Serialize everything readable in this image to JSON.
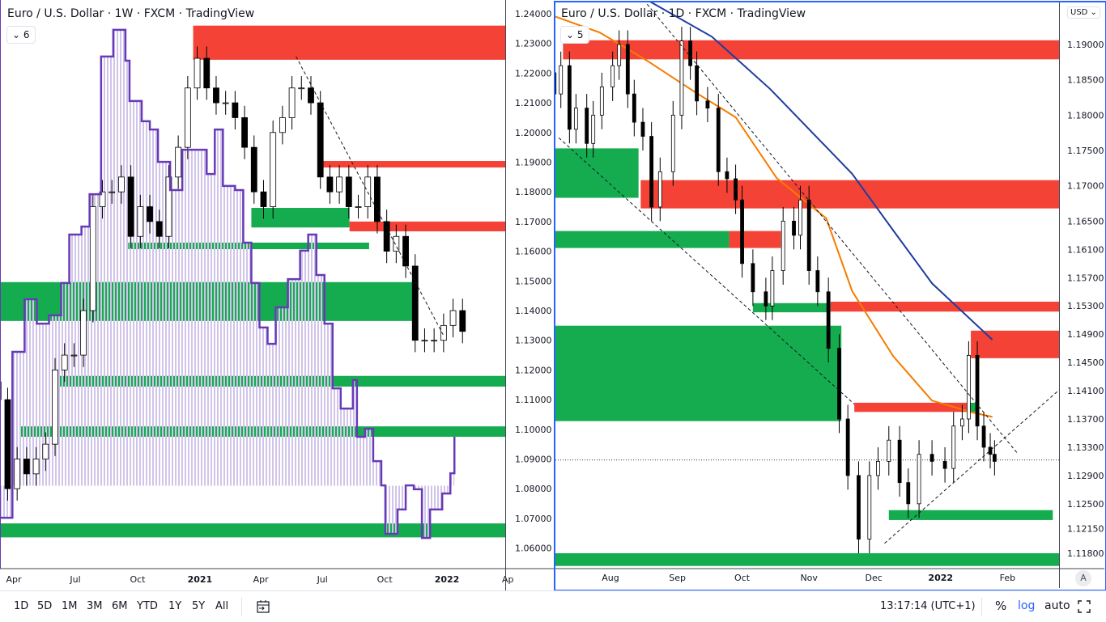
{
  "left_chart": {
    "title": "Euro / U.S. Dollar · 1W · FXCM · TradingView",
    "indicator_count": "6",
    "price_axis": [
      "1.24000",
      "1.23000",
      "1.22000",
      "1.21000",
      "1.20000",
      "1.19000",
      "1.18000",
      "1.17000",
      "1.16000",
      "1.15000",
      "1.14000",
      "1.13000",
      "1.12000",
      "1.11000",
      "1.10000",
      "1.09000",
      "1.08000",
      "1.07000",
      "1.06000"
    ],
    "time_axis": [
      {
        "label": "Apr",
        "date": "2020-04-01"
      },
      {
        "label": "Jul",
        "date": "2020-07-01"
      },
      {
        "label": "Oct",
        "date": "2020-10-01"
      },
      {
        "label": "2021",
        "date": "2021-01-01"
      },
      {
        "label": "Apr",
        "date": "2021-04-01"
      },
      {
        "label": "Jul",
        "date": "2021-07-01"
      },
      {
        "label": "Oct",
        "date": "2021-10-01"
      },
      {
        "label": "2022",
        "date": "2022-01-01"
      },
      {
        "label": "Ap",
        "date": "2022-04-01"
      }
    ]
  },
  "right_chart": {
    "title": "Euro / U.S. Dollar · 1D · FXCM · TradingView",
    "indicator_count": "5",
    "currency": "USD",
    "auto_scale_button": "A",
    "price_axis": [
      "1.19000",
      "1.18500",
      "1.18000",
      "1.17500",
      "1.17000",
      "1.16500",
      "1.16100",
      "1.15700",
      "1.15300",
      "1.14900",
      "1.14500",
      "1.14100",
      "1.13700",
      "1.13300",
      "1.12900",
      "1.12500",
      "1.12150",
      "1.11800"
    ],
    "time_axis": [
      {
        "label": "Aug",
        "date": "2021-08-01"
      },
      {
        "label": "Sep",
        "date": "2021-09-01"
      },
      {
        "label": "Oct",
        "date": "2021-10-01"
      },
      {
        "label": "Nov",
        "date": "2021-11-01"
      },
      {
        "label": "Dec",
        "date": "2021-12-01"
      },
      {
        "label": "2022",
        "date": "2022-01-01"
      },
      {
        "label": "Feb",
        "date": "2022-02-01"
      }
    ]
  },
  "toolbar": {
    "ranges": [
      "1D",
      "5D",
      "1M",
      "3M",
      "6M",
      "YTD",
      "1Y",
      "5Y",
      "All"
    ],
    "time": "13:17:14 (UTC+1)",
    "percent": "%",
    "log": "log",
    "auto": "auto"
  },
  "colors": {
    "supply_zone": "#f44336",
    "demand_zone": "#15ac50",
    "indicator": "#673ab7",
    "indicator_fill": "#d1c4e9",
    "ma_fast": "#f57c00",
    "ma_slow": "#1e3d9e",
    "accent": "#2962ff"
  },
  "chart_data": [
    {
      "type": "candlestick",
      "symbol": "EUR/USD",
      "interval": "1W",
      "scale": "linear",
      "ylim": [
        1.055,
        1.243
      ],
      "closes": [
        [
          "2020-03-09",
          1.11
        ],
        [
          "2020-03-23",
          1.08
        ],
        [
          "2020-04-06",
          1.09
        ],
        [
          "2020-04-20",
          1.085
        ],
        [
          "2020-05-04",
          1.09
        ],
        [
          "2020-05-18",
          1.095
        ],
        [
          "2020-06-01",
          1.12
        ],
        [
          "2020-06-15",
          1.125
        ],
        [
          "2020-06-29",
          1.125
        ],
        [
          "2020-07-13",
          1.14
        ],
        [
          "2020-07-27",
          1.175
        ],
        [
          "2020-08-10",
          1.18
        ],
        [
          "2020-08-24",
          1.18
        ],
        [
          "2020-09-07",
          1.185
        ],
        [
          "2020-09-21",
          1.165
        ],
        [
          "2020-10-05",
          1.175
        ],
        [
          "2020-10-19",
          1.17
        ],
        [
          "2020-11-02",
          1.165
        ],
        [
          "2020-11-16",
          1.185
        ],
        [
          "2020-11-30",
          1.195
        ],
        [
          "2020-12-14",
          1.215
        ],
        [
          "2020-12-28",
          1.225
        ],
        [
          "2021-01-11",
          1.215
        ],
        [
          "2021-01-25",
          1.21
        ],
        [
          "2021-02-08",
          1.21
        ],
        [
          "2021-02-22",
          1.205
        ],
        [
          "2021-03-08",
          1.195
        ],
        [
          "2021-03-22",
          1.18
        ],
        [
          "2021-04-05",
          1.175
        ],
        [
          "2021-04-19",
          1.2
        ],
        [
          "2021-05-03",
          1.205
        ],
        [
          "2021-05-17",
          1.215
        ],
        [
          "2021-05-31",
          1.215
        ],
        [
          "2021-06-14",
          1.21
        ],
        [
          "2021-06-28",
          1.185
        ],
        [
          "2021-07-12",
          1.18
        ],
        [
          "2021-07-26",
          1.185
        ],
        [
          "2021-08-09",
          1.175
        ],
        [
          "2021-08-23",
          1.175
        ],
        [
          "2021-09-06",
          1.185
        ],
        [
          "2021-09-20",
          1.17
        ],
        [
          "2021-10-04",
          1.16
        ],
        [
          "2021-10-18",
          1.165
        ],
        [
          "2021-11-01",
          1.155
        ],
        [
          "2021-11-15",
          1.13
        ],
        [
          "2021-11-29",
          1.13
        ],
        [
          "2021-12-13",
          1.13
        ],
        [
          "2021-12-27",
          1.135
        ],
        [
          "2022-01-10",
          1.14
        ],
        [
          "2022-01-24",
          1.133
        ]
      ],
      "indicator": [
        [
          "2020-03-11",
          1.0702
        ],
        [
          "2020-03-30",
          1.1261
        ],
        [
          "2020-04-17",
          1.1438
        ],
        [
          "2020-05-05",
          1.1356
        ],
        [
          "2020-05-23",
          1.1384
        ],
        [
          "2020-06-10",
          1.1493
        ],
        [
          "2020-06-22",
          1.1656
        ],
        [
          "2020-07-10",
          1.1683
        ],
        [
          "2020-07-22",
          1.1792
        ],
        [
          "2020-08-08",
          1.2256
        ],
        [
          "2020-08-26",
          1.2346
        ],
        [
          "2020-09-13",
          1.2242
        ],
        [
          "2020-09-19",
          1.2106
        ],
        [
          "2020-10-07",
          1.2038
        ],
        [
          "2020-10-19",
          1.201
        ],
        [
          "2020-10-31",
          1.1901
        ],
        [
          "2020-11-18",
          1.1806
        ],
        [
          "2020-12-06",
          1.1942
        ],
        [
          "2020-12-24",
          1.1942
        ],
        [
          "2021-01-11",
          1.186
        ],
        [
          "2021-01-23",
          1.201
        ],
        [
          "2021-02-04",
          1.182
        ],
        [
          "2021-02-22",
          1.1806
        ],
        [
          "2021-03-06",
          1.1629
        ],
        [
          "2021-03-18",
          1.1493
        ],
        [
          "2021-03-30",
          1.1343
        ],
        [
          "2021-04-11",
          1.1288
        ],
        [
          "2021-04-23",
          1.1411
        ],
        [
          "2021-05-11",
          1.1506
        ],
        [
          "2021-05-29",
          1.1602
        ],
        [
          "2021-06-10",
          1.1656
        ],
        [
          "2021-06-22",
          1.152
        ],
        [
          "2021-07-04",
          1.1356
        ],
        [
          "2021-07-16",
          1.1138
        ],
        [
          "2021-07-28",
          1.107
        ],
        [
          "2021-08-15",
          1.1166
        ],
        [
          "2021-08-21",
          1.0975
        ],
        [
          "2021-09-02",
          1.1002
        ],
        [
          "2021-09-14",
          1.0893
        ],
        [
          "2021-09-26",
          1.0811
        ],
        [
          "2021-10-02",
          1.0648
        ],
        [
          "2021-10-20",
          1.073
        ],
        [
          "2021-11-01",
          1.0811
        ],
        [
          "2021-11-13",
          1.0798
        ],
        [
          "2021-11-25",
          1.0634
        ],
        [
          "2021-12-07",
          1.073
        ],
        [
          "2021-12-25",
          1.0784
        ],
        [
          "2022-01-06",
          1.0852
        ],
        [
          "2022-01-12",
          1.0975
        ]
      ],
      "indicator_base": 1.081,
      "zones": [
        {
          "kind": "supply",
          "from": "2020-12-22",
          "to": null,
          "low": 1.2245,
          "high": 1.236
        },
        {
          "kind": "supply",
          "from": "2021-07-02",
          "to": null,
          "low": 1.1882,
          "high": 1.1904
        },
        {
          "kind": "demand",
          "from": "2021-03-18",
          "to": "2021-08-10",
          "low": 1.168,
          "high": 1.1746
        },
        {
          "kind": "supply",
          "from": "2021-08-10",
          "to": null,
          "low": 1.1667,
          "high": 1.17
        },
        {
          "kind": "demand",
          "from": "2020-09-17",
          "to": "2021-09-08",
          "low": 1.1607,
          "high": 1.1629
        },
        {
          "kind": "demand",
          "from": "2020-03-11",
          "to": "2021-11-13",
          "low": 1.1365,
          "high": 1.1496
        },
        {
          "kind": "demand",
          "from": "2020-06-07",
          "to": null,
          "low": 1.1144,
          "high": 1.118
        },
        {
          "kind": "demand",
          "from": "2020-04-10",
          "to": null,
          "low": 1.0975,
          "high": 1.101
        },
        {
          "kind": "demand",
          "from": "2020-03-11",
          "to": null,
          "low": 1.0636,
          "high": 1.0683
        }
      ],
      "trendlines": [
        {
          "from": [
            "2021-05-23",
            1.2256
          ],
          "to": [
            "2021-12-27",
            1.1316
          ],
          "style": "dashed"
        }
      ]
    },
    {
      "type": "candlestick",
      "symbol": "EUR/USD",
      "interval": "1D",
      "scale": "log",
      "ylim": [
        1.116,
        1.196
      ],
      "closes": [
        [
          "2021-07-06",
          1.183
        ],
        [
          "2021-07-09",
          1.187
        ],
        [
          "2021-07-13",
          1.178
        ],
        [
          "2021-07-16",
          1.181
        ],
        [
          "2021-07-21",
          1.176
        ],
        [
          "2021-07-24",
          1.18
        ],
        [
          "2021-07-28",
          1.184
        ],
        [
          "2021-08-02",
          1.187
        ],
        [
          "2021-08-05",
          1.19
        ],
        [
          "2021-08-09",
          1.183
        ],
        [
          "2021-08-12",
          1.179
        ],
        [
          "2021-08-16",
          1.177
        ],
        [
          "2021-08-20",
          1.167
        ],
        [
          "2021-08-24",
          1.172
        ],
        [
          "2021-08-30",
          1.18
        ],
        [
          "2021-09-03",
          1.1905
        ],
        [
          "2021-09-07",
          1.187
        ],
        [
          "2021-09-10",
          1.182
        ],
        [
          "2021-09-15",
          1.181
        ],
        [
          "2021-09-20",
          1.172
        ],
        [
          "2021-09-24",
          1.171
        ],
        [
          "2021-09-28",
          1.168
        ],
        [
          "2021-10-01",
          1.159
        ],
        [
          "2021-10-06",
          1.155
        ],
        [
          "2021-10-12",
          1.153
        ],
        [
          "2021-10-15",
          1.158
        ],
        [
          "2021-10-20",
          1.165
        ],
        [
          "2021-10-25",
          1.163
        ],
        [
          "2021-10-28",
          1.168
        ],
        [
          "2021-11-01",
          1.158
        ],
        [
          "2021-11-05",
          1.155
        ],
        [
          "2021-11-10",
          1.147
        ],
        [
          "2021-11-15",
          1.137
        ],
        [
          "2021-11-19",
          1.129
        ],
        [
          "2021-11-24",
          1.12
        ],
        [
          "2021-11-29",
          1.129
        ],
        [
          "2021-12-03",
          1.131
        ],
        [
          "2021-12-08",
          1.134
        ],
        [
          "2021-12-13",
          1.128
        ],
        [
          "2021-12-17",
          1.125
        ],
        [
          "2021-12-22",
          1.132
        ],
        [
          "2021-12-28",
          1.131
        ],
        [
          "2022-01-03",
          1.13
        ],
        [
          "2022-01-07",
          1.136
        ],
        [
          "2022-01-11",
          1.137
        ],
        [
          "2022-01-14",
          1.146
        ],
        [
          "2022-01-18",
          1.136
        ],
        [
          "2022-01-21",
          1.133
        ],
        [
          "2022-01-24",
          1.132
        ],
        [
          "2022-01-26",
          1.131
        ]
      ],
      "ma_fast": [
        [
          "2021-07-06",
          1.194
        ],
        [
          "2021-07-27",
          1.1917
        ],
        [
          "2021-08-18",
          1.1877
        ],
        [
          "2021-09-10",
          1.1831
        ],
        [
          "2021-09-28",
          1.1797
        ],
        [
          "2021-10-17",
          1.1711
        ],
        [
          "2021-11-09",
          1.1654
        ],
        [
          "2021-11-21",
          1.1551
        ],
        [
          "2021-12-10",
          1.1459
        ],
        [
          "2021-12-28",
          1.1396
        ],
        [
          "2022-01-16",
          1.1379
        ],
        [
          "2022-01-25",
          1.1373
        ]
      ],
      "ma_slow": [
        [
          "2021-08-18",
          1.1963
        ],
        [
          "2021-09-17",
          1.1911
        ],
        [
          "2021-10-14",
          1.1837
        ],
        [
          "2021-11-21",
          1.1717
        ],
        [
          "2021-12-10",
          1.1637
        ],
        [
          "2021-12-28",
          1.1562
        ],
        [
          "2022-01-25",
          1.1482
        ]
      ],
      "last_price": 1.1312,
      "zones": [
        {
          "kind": "supply",
          "from": "2021-07-10",
          "to": null,
          "low": 1.1879,
          "high": 1.1906
        },
        {
          "kind": "demand",
          "from": "2021-07-06",
          "to": "2021-08-14",
          "low": 1.1683,
          "high": 1.1753
        },
        {
          "kind": "supply",
          "from": "2021-08-15",
          "to": null,
          "low": 1.1668,
          "high": 1.1708
        },
        {
          "kind": "demand",
          "from": "2021-07-06",
          "to": "2021-09-25",
          "low": 1.1612,
          "high": 1.1636
        },
        {
          "kind": "supply",
          "from": "2021-09-25",
          "to": "2021-10-19",
          "low": 1.1612,
          "high": 1.1636
        },
        {
          "kind": "demand",
          "from": "2021-10-06",
          "to": "2021-11-11",
          "low": 1.1521,
          "high": 1.1534
        },
        {
          "kind": "supply",
          "from": "2021-11-11",
          "to": null,
          "low": 1.1522,
          "high": 1.1536
        },
        {
          "kind": "demand",
          "from": "2021-07-06",
          "to": "2021-11-16",
          "low": 1.1367,
          "high": 1.1502
        },
        {
          "kind": "supply",
          "from": "2022-01-15",
          "to": null,
          "low": 1.1456,
          "high": 1.1495
        },
        {
          "kind": "supply",
          "from": "2021-11-22",
          "to": "2022-01-14",
          "low": 1.138,
          "high": 1.1393
        },
        {
          "kind": "demand",
          "from": "2022-01-14",
          "to": "2022-01-18",
          "low": 1.138,
          "high": 1.1393
        },
        {
          "kind": "demand",
          "from": "2021-12-08",
          "to": "2022-02-22",
          "low": 1.1227,
          "high": 1.1241
        },
        {
          "kind": "demand",
          "from": "2021-07-06",
          "to": null,
          "low": 1.1162,
          "high": 1.118
        }
      ],
      "trendlines": [
        {
          "from": [
            "2021-08-18",
            1.1957
          ],
          "to": [
            "2022-02-06",
            1.132
          ],
          "style": "dashed"
        },
        {
          "from": [
            "2021-07-08",
            1.1768
          ],
          "to": [
            "2021-11-22",
            1.1391
          ],
          "style": "dashed"
        },
        {
          "from": [
            "2021-12-06",
            1.1194
          ],
          "to": [
            "2022-02-26",
            1.1414
          ],
          "style": "dashed"
        }
      ]
    }
  ]
}
